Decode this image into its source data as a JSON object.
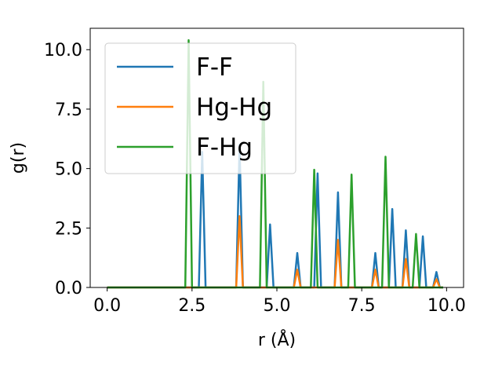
{
  "chart_data": {
    "type": "line",
    "xlabel": "r (Å)",
    "ylabel": "g(r)",
    "xlim": [
      -0.5,
      10.5
    ],
    "ylim": [
      0,
      10.9
    ],
    "xticks": [
      "0.0",
      "2.5",
      "5.0",
      "7.5",
      "10.0"
    ],
    "yticks": [
      "0.0",
      "2.5",
      "5.0",
      "7.5",
      "10.0"
    ],
    "grid": false,
    "legend_position": "top-left",
    "series": [
      {
        "name": "F-F",
        "color": "#1f77b4",
        "x": [
          0.0,
          2.7,
          2.8,
          2.9,
          3.8,
          3.9,
          4.0,
          4.7,
          4.8,
          4.9,
          5.5,
          5.6,
          5.7,
          6.1,
          6.2,
          6.3,
          6.7,
          6.8,
          6.9,
          7.8,
          7.9,
          8.0,
          8.3,
          8.4,
          8.5,
          8.7,
          8.8,
          8.9,
          9.2,
          9.3,
          9.4,
          9.6,
          9.7,
          9.8,
          9.9
        ],
        "y": [
          0,
          0,
          5.7,
          0,
          0,
          6.0,
          0,
          0,
          2.65,
          0,
          0,
          1.45,
          0,
          0,
          4.8,
          0,
          0,
          4.0,
          0,
          0,
          1.45,
          0,
          0,
          3.3,
          0,
          0,
          2.4,
          0,
          0,
          2.15,
          0,
          0,
          0.65,
          0,
          0
        ]
      },
      {
        "name": "Hg-Hg",
        "color": "#ff7f0e",
        "x": [
          0.0,
          3.8,
          3.9,
          4.0,
          5.5,
          5.6,
          5.7,
          6.7,
          6.8,
          6.9,
          7.8,
          7.9,
          8.0,
          8.7,
          8.8,
          8.9,
          9.6,
          9.7,
          9.8,
          9.9
        ],
        "y": [
          0,
          0,
          3.0,
          0,
          0,
          0.75,
          0,
          0,
          2.0,
          0,
          0,
          0.75,
          0,
          0,
          1.2,
          0,
          0,
          0.35,
          0,
          0
        ]
      },
      {
        "name": "F-Hg",
        "color": "#2ca02c",
        "x": [
          0.0,
          2.3,
          2.4,
          2.5,
          4.5,
          4.6,
          4.7,
          6.0,
          6.1,
          6.2,
          7.1,
          7.2,
          7.3,
          8.1,
          8.2,
          8.3,
          9.0,
          9.1,
          9.2,
          9.9
        ],
        "y": [
          0,
          0,
          10.4,
          0,
          0,
          8.65,
          0,
          0,
          4.95,
          0,
          0,
          4.75,
          0,
          0,
          5.5,
          0,
          0,
          2.25,
          0,
          0
        ]
      }
    ]
  }
}
